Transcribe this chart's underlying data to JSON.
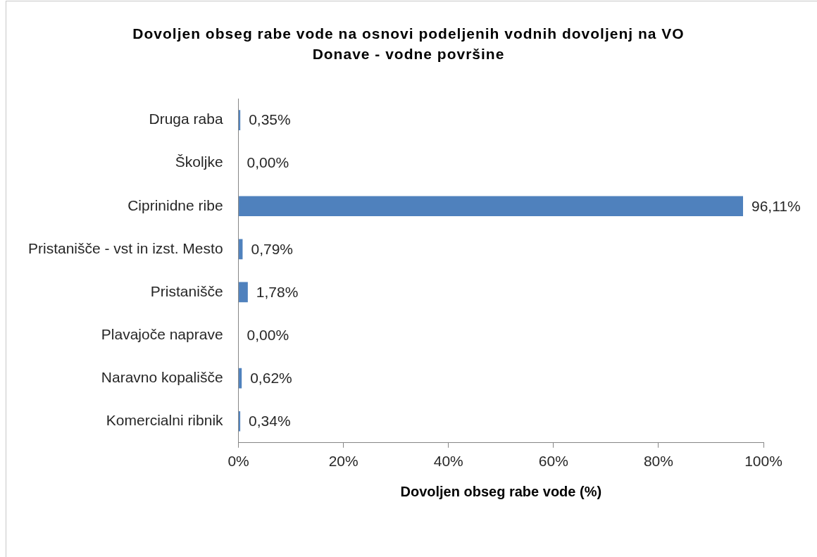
{
  "chart_data": {
    "type": "bar",
    "orientation": "horizontal",
    "title": "Dovoljen obseg rabe vode na osnovi podeljenih vodnih dovoljenj na VO Donave - vodne površine",
    "xlabel": "Dovoljen obseg rabe vode (%)",
    "categories": [
      "Druga raba",
      "Školjke",
      "Ciprinidne ribe",
      "Pristanišče - vst in izst. Mesto",
      "Pristanišče",
      "Plavajoče naprave",
      "Naravno kopališče",
      "Komercialni ribnik"
    ],
    "values": [
      0.35,
      0,
      96.11,
      0.79,
      1.78,
      0,
      0.62,
      0.34
    ],
    "value_labels": [
      "0,35%",
      "0,00%",
      "96,11%",
      "0,79%",
      "1,78%",
      "0,00%",
      "0,62%",
      "0,34%"
    ],
    "color": "#4f81bd",
    "xlim": [
      0,
      100
    ],
    "xticks": [
      {
        "value": 0,
        "label": "0%"
      },
      {
        "value": 20,
        "label": "20%"
      },
      {
        "value": 40,
        "label": "40%"
      },
      {
        "value": 60,
        "label": "60%"
      },
      {
        "value": 80,
        "label": "80%"
      },
      {
        "value": 100,
        "label": "100%"
      }
    ]
  }
}
